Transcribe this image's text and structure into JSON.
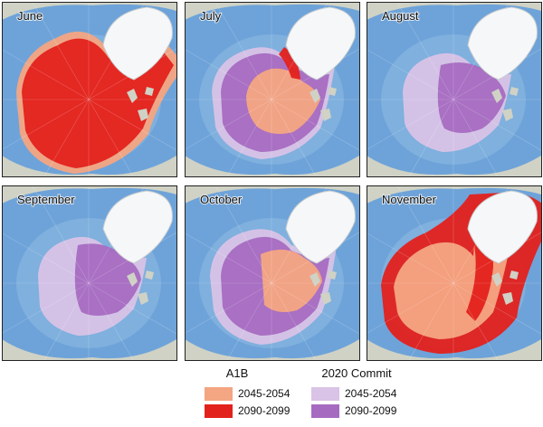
{
  "panels": [
    {
      "label": "June"
    },
    {
      "label": "July"
    },
    {
      "label": "August"
    },
    {
      "label": "September"
    },
    {
      "label": "October"
    },
    {
      "label": "November"
    }
  ],
  "legend": {
    "groups": [
      {
        "title": "A1B",
        "items": [
          {
            "label": "2045-2054",
            "color": "#f4a582"
          },
          {
            "label": "2090-2099",
            "color": "#e3211c"
          }
        ]
      },
      {
        "title": "2020 Commit",
        "items": [
          {
            "label": "2045-2054",
            "color": "#d9c3e6"
          },
          {
            "label": "2090-2099",
            "color": "#a66bc1"
          }
        ]
      }
    ]
  }
}
